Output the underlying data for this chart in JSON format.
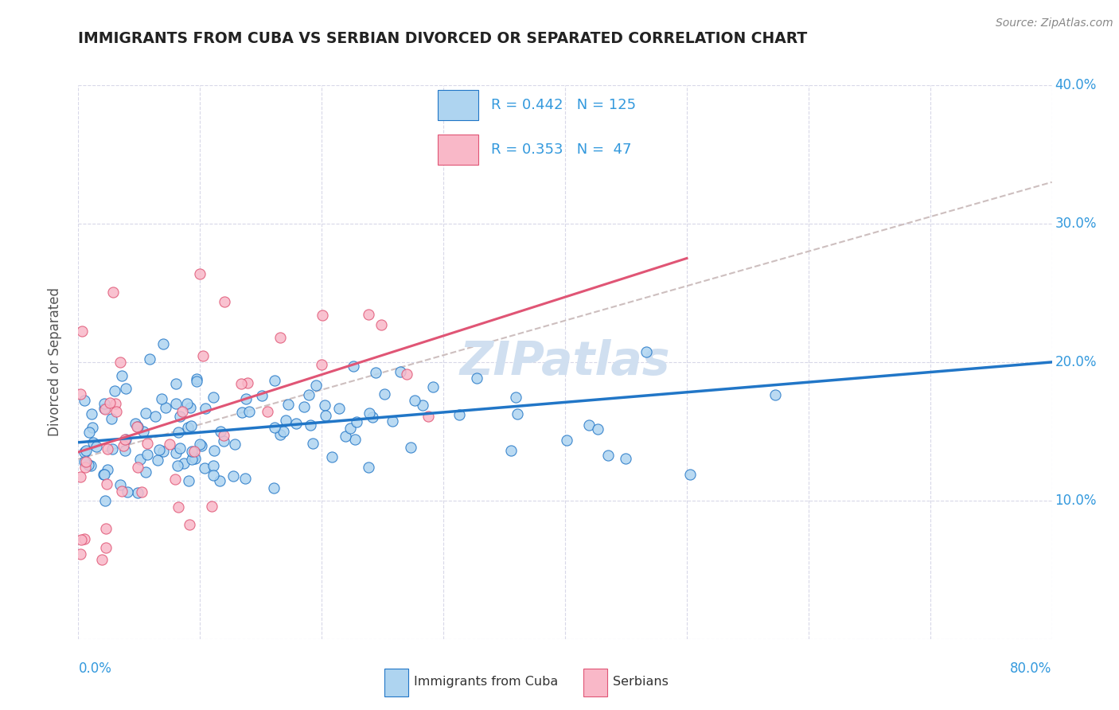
{
  "title": "IMMIGRANTS FROM CUBA VS SERBIAN DIVORCED OR SEPARATED CORRELATION CHART",
  "source": "Source: ZipAtlas.com",
  "ylabel": "Divorced or Separated",
  "legend_label1": "Immigrants from Cuba",
  "legend_label2": "Serbians",
  "R1": 0.442,
  "N1": 125,
  "R2": 0.353,
  "N2": 47,
  "color_blue": "#aed4f0",
  "color_pink": "#f9b8c8",
  "line_blue": "#2176c7",
  "line_pink": "#e05575",
  "line_dashed_color": "#c8b8b8",
  "background": "#ffffff",
  "grid_color": "#d8d8e8",
  "title_color": "#222222",
  "axis_label_color": "#3399dd",
  "watermark_color": "#d0dff0",
  "xlim": [
    0,
    80
  ],
  "ylim": [
    0,
    40
  ],
  "yticks": [
    10,
    20,
    30,
    40
  ],
  "ytick_labels": [
    "10.0%",
    "20.0%",
    "30.0%",
    "40.0%"
  ]
}
